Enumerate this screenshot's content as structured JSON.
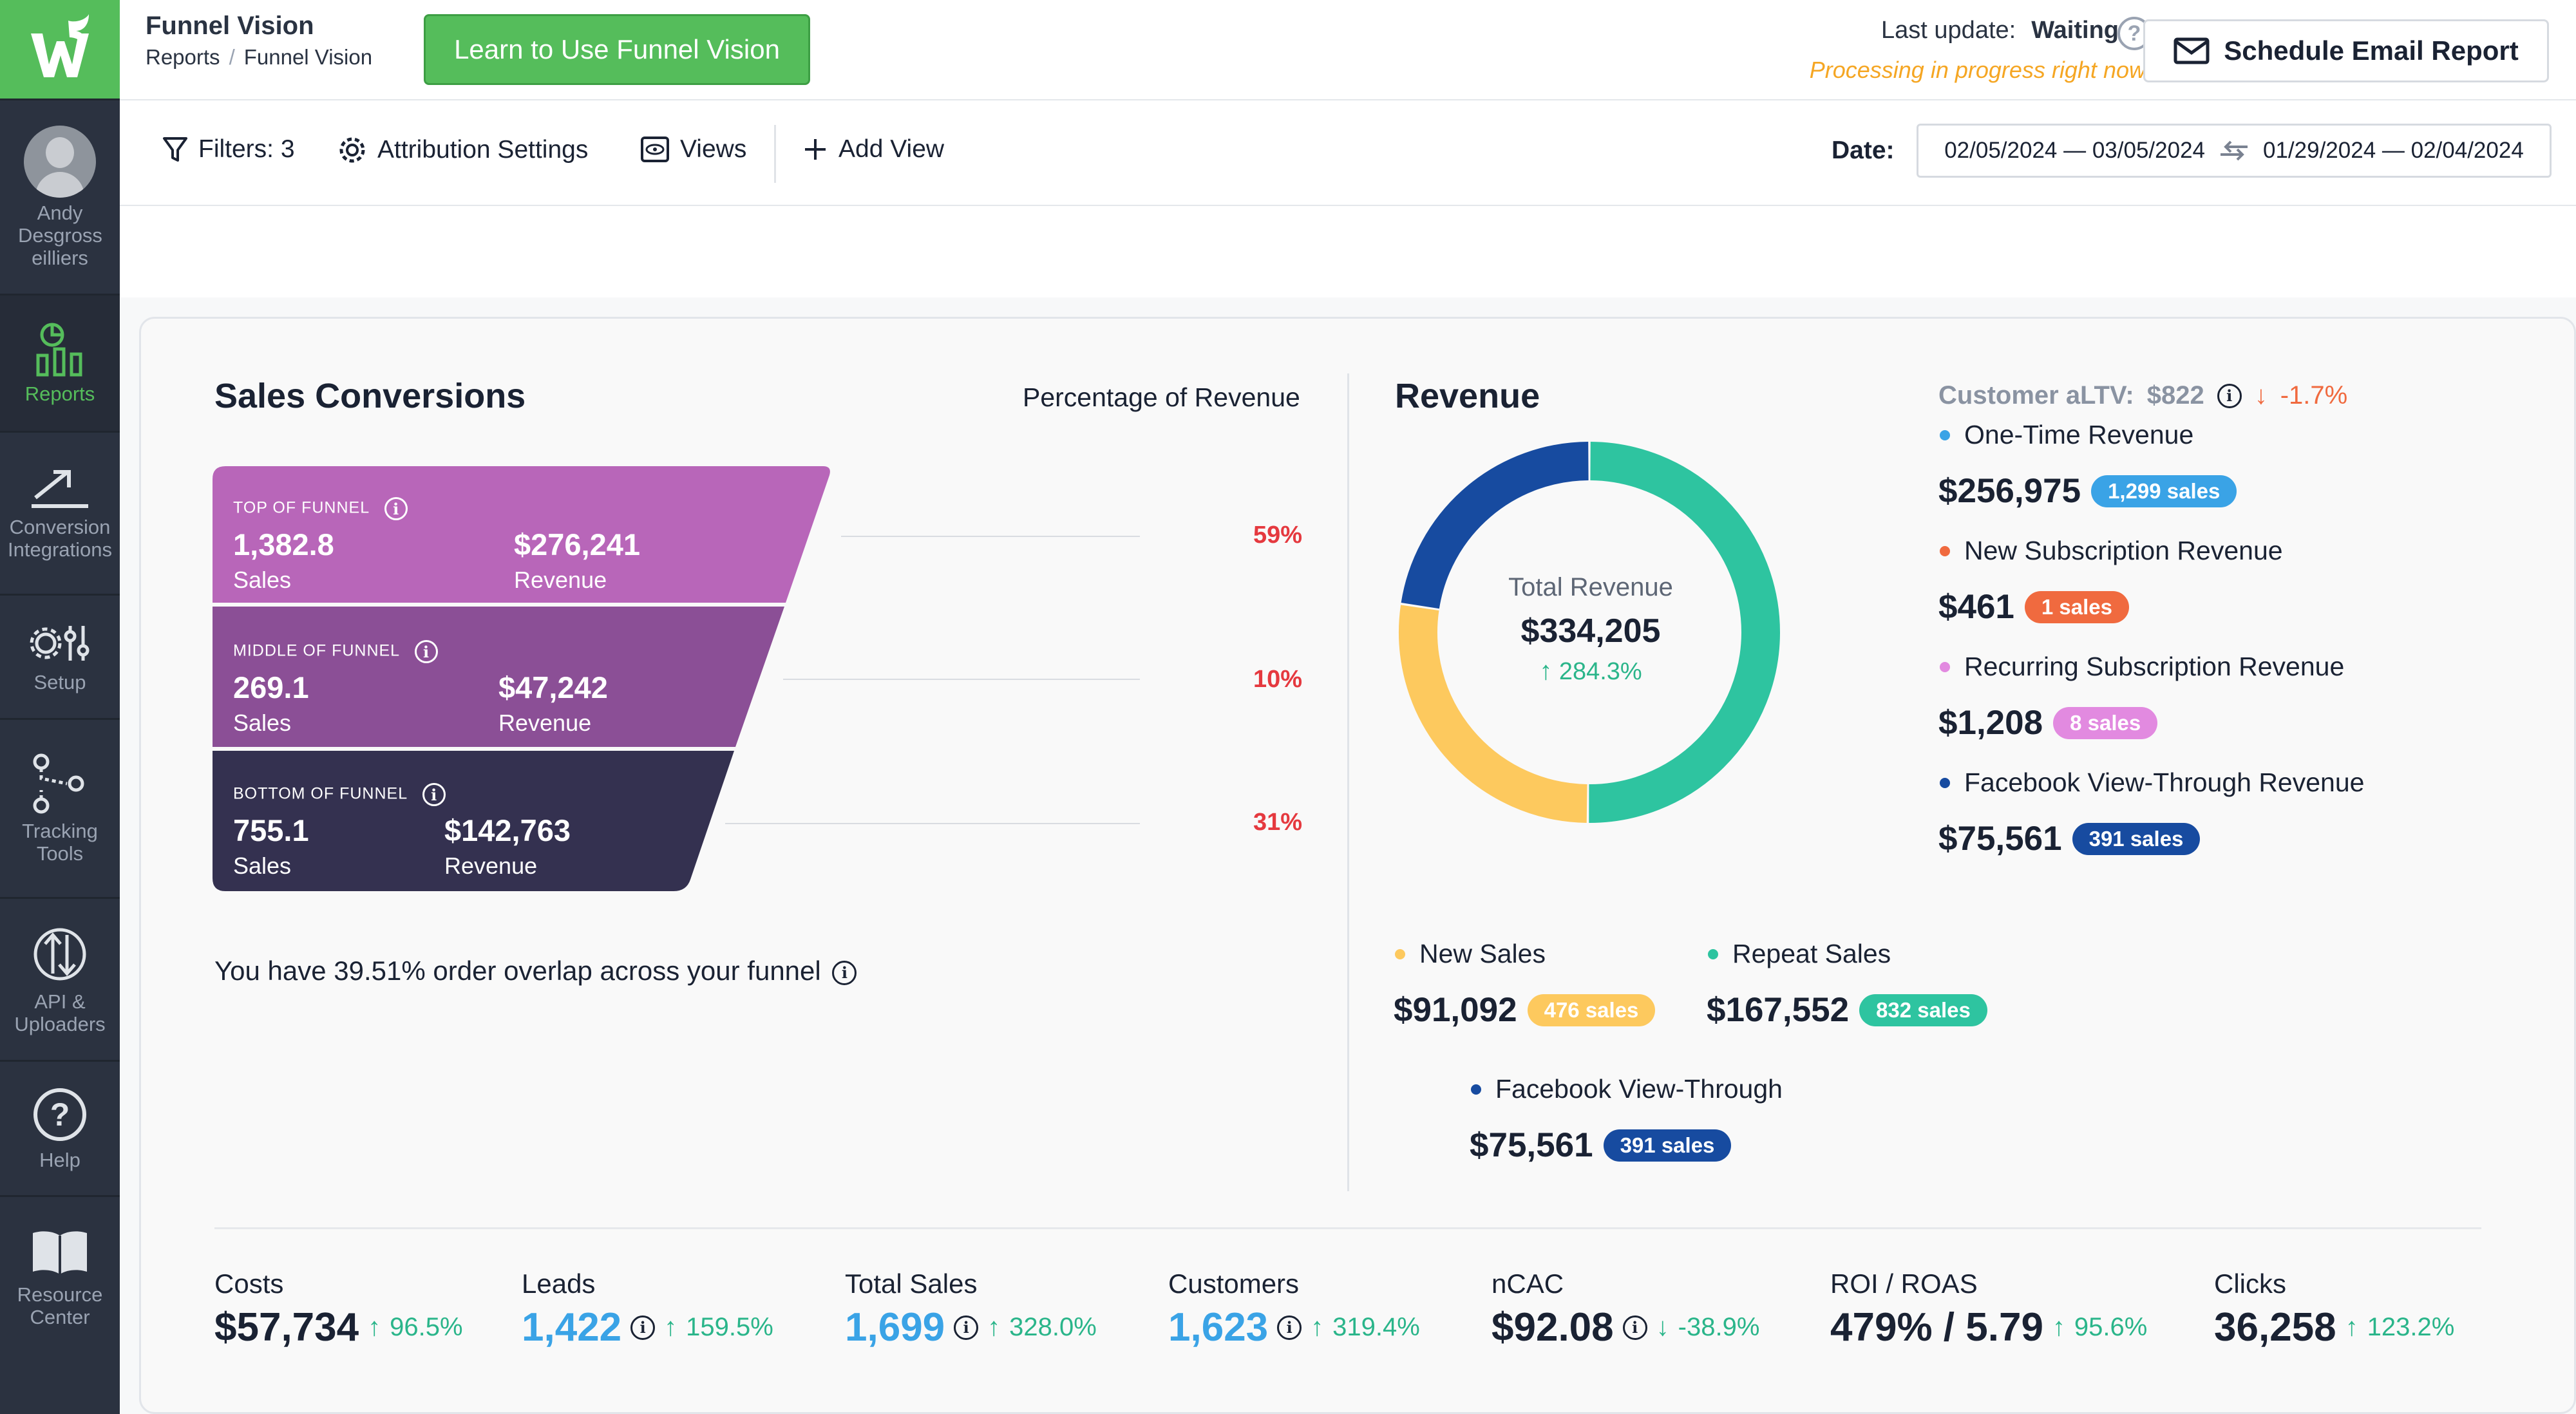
{
  "sidebar": {
    "user_name": "Andy Desgross eilliers",
    "items": [
      {
        "label": "Reports",
        "icon": "reports-icon",
        "active": true
      },
      {
        "label": "Conversion Integrations",
        "icon": "conversion-icon"
      },
      {
        "label": "Setup",
        "icon": "setup-icon"
      },
      {
        "label": "Tracking Tools",
        "icon": "tracking-icon"
      },
      {
        "label": "API & Uploaders",
        "icon": "api-icon"
      },
      {
        "label": "Help",
        "icon": "help-icon"
      },
      {
        "label": "Resource Center",
        "icon": "book-icon"
      }
    ]
  },
  "header": {
    "title": "Funnel Vision",
    "breadcrumb": [
      "Reports",
      "Funnel Vision"
    ],
    "learn_button": "Learn to Use Funnel Vision",
    "last_update_label": "Last update:",
    "last_update_status": "Waiting",
    "processing_text": "Processing in progress right now.",
    "email_button": "Schedule Email Report"
  },
  "toolbar": {
    "filters": "Filters: 3",
    "attribution": "Attribution Settings",
    "views": "Views",
    "add_view": "Add View",
    "date_label": "Date:",
    "date_range": "02/05/2024 — 03/05/2024",
    "compare_range": "01/29/2024 — 02/04/2024"
  },
  "sales_conversions": {
    "title": "Sales Conversions",
    "pct_header": "Percentage of Revenue",
    "stages": [
      {
        "label": "TOP OF FUNNEL",
        "sales": "1,382.8",
        "sales_label": "Sales",
        "revenue": "$276,241",
        "revenue_label": "Revenue",
        "pct": "59%",
        "color": "#b866b9"
      },
      {
        "label": "MIDDLE OF FUNNEL",
        "sales": "269.1",
        "sales_label": "Sales",
        "revenue": "$47,242",
        "revenue_label": "Revenue",
        "pct": "10%",
        "color": "#8b4f96"
      },
      {
        "label": "BOTTOM OF FUNNEL",
        "sales": "755.1",
        "sales_label": "Sales",
        "revenue": "$142,763",
        "revenue_label": "Revenue",
        "pct": "31%",
        "color": "#343150"
      }
    ],
    "overlap_text": "You have 39.51% order overlap across your funnel"
  },
  "revenue": {
    "title": "Revenue",
    "total_label": "Total Revenue",
    "total_value": "$334,205",
    "total_change": "284.3%",
    "donut": [
      {
        "name": "Repeat Sales",
        "value": 167552,
        "color": "#2ec4a0"
      },
      {
        "name": "New Sales",
        "value": 91092,
        "color": "#fdc95e"
      },
      {
        "name": "Facebook View-Through",
        "value": 75561,
        "color": "#174ba0"
      }
    ],
    "altv_label": "Customer aLTV:",
    "altv_value": "$822",
    "altv_change": "-1.7%",
    "breakdown": [
      {
        "label": "One-Time Revenue",
        "value": "$256,975",
        "badge": "1,299 sales",
        "color": "#3aa3e6"
      },
      {
        "label": "New Subscription Revenue",
        "value": "$461",
        "badge": "1 sales",
        "color": "#f06a3f"
      },
      {
        "label": "Recurring Subscription Revenue",
        "value": "$1,208",
        "badge": "8 sales",
        "color": "#e28ae0"
      },
      {
        "label": "Facebook View-Through Revenue",
        "value": "$75,561",
        "badge": "391 sales",
        "color": "#174ba0"
      }
    ],
    "sales_types": [
      {
        "label": "New Sales",
        "value": "$91,092",
        "badge": "476 sales",
        "color": "#fdc95e"
      },
      {
        "label": "Repeat Sales",
        "value": "$167,552",
        "badge": "832 sales",
        "color": "#2ec4a0"
      },
      {
        "label": "Facebook View-Through",
        "value": "$75,561",
        "badge": "391 sales",
        "color": "#174ba0"
      }
    ]
  },
  "metrics": [
    {
      "label": "Costs",
      "value": "$57,734",
      "change": "96.5%",
      "dir": "up",
      "info": false,
      "blue": false
    },
    {
      "label": "Leads",
      "value": "1,422",
      "change": "159.5%",
      "dir": "up",
      "info": true,
      "blue": true
    },
    {
      "label": "Total Sales",
      "value": "1,699",
      "change": "328.0%",
      "dir": "up",
      "info": true,
      "blue": true
    },
    {
      "label": "Customers",
      "value": "1,623",
      "change": "319.4%",
      "dir": "up",
      "info": true,
      "blue": true
    },
    {
      "label": "nCAC",
      "value": "$92.08",
      "change": "-38.9%",
      "dir": "down",
      "info": true,
      "blue": false
    },
    {
      "label": "ROI / ROAS",
      "value": "479% / 5.79",
      "change": "95.6%",
      "dir": "up",
      "info": false,
      "blue": false
    },
    {
      "label": "Clicks",
      "value": "36,258",
      "change": "123.2%",
      "dir": "up",
      "info": false,
      "blue": false
    }
  ]
}
